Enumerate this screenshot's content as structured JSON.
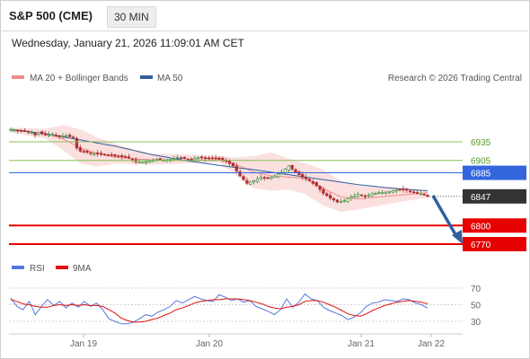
{
  "header": {
    "title": "S&P 500 (CME)",
    "interval": "30 MIN"
  },
  "datetime": "Wednesday, January 21, 2026 11:09:01 AM CET",
  "credit": "Research © 2026 Trading Central",
  "legend": {
    "bollinger": "MA 20 + Bollinger Bands",
    "ma50": "MA 50",
    "rsi": "RSI",
    "rsi_ma": "9MA"
  },
  "colors": {
    "bollinger": "#f08a8a",
    "ma50": "#2f5f9e",
    "rsi": "#5577dd",
    "rsi_ma": "#e01010",
    "resistance": "#88c057",
    "pivot": "#3366dd",
    "support": "#e60000",
    "last": "#333333",
    "candle_up": "#2e8b2e",
    "candle_down": "#b03030"
  },
  "chart_data": [
    {
      "type": "candlestick",
      "title": "S&P 500 (CME) 30 MIN",
      "x_labels": [
        "Jan 19",
        "Jan 20",
        "Jan 21",
        "Jan 22"
      ],
      "y_range": [
        6760,
        6960
      ],
      "levels": [
        {
          "label": "6935",
          "value": 6935,
          "kind": "resistance"
        },
        {
          "label": "6905",
          "value": 6905,
          "kind": "resistance"
        },
        {
          "label": "6885",
          "value": 6885,
          "kind": "pivot"
        },
        {
          "label": "6847",
          "value": 6847,
          "kind": "last"
        },
        {
          "label": "6800",
          "value": 6800,
          "kind": "support"
        },
        {
          "label": "6770",
          "value": 6770,
          "kind": "support"
        }
      ],
      "close_path": [
        [
          0,
          6955
        ],
        [
          2,
          6953
        ],
        [
          4,
          6952
        ],
        [
          6,
          6950
        ],
        [
          7,
          6946
        ],
        [
          8,
          6950
        ],
        [
          10,
          6946
        ],
        [
          12,
          6947
        ],
        [
          14,
          6944
        ],
        [
          16,
          6945
        ],
        [
          18,
          6942
        ],
        [
          19,
          6925
        ],
        [
          20,
          6920
        ],
        [
          22,
          6918
        ],
        [
          24,
          6916
        ],
        [
          26,
          6915
        ],
        [
          28,
          6914
        ],
        [
          30,
          6912
        ],
        [
          32,
          6911
        ],
        [
          34,
          6909
        ],
        [
          36,
          6903
        ],
        [
          38,
          6902
        ],
        [
          40,
          6904
        ],
        [
          42,
          6907
        ],
        [
          44,
          6905
        ],
        [
          46,
          6907
        ],
        [
          48,
          6910
        ],
        [
          50,
          6908
        ],
        [
          52,
          6906
        ],
        [
          54,
          6910
        ],
        [
          56,
          6908
        ],
        [
          58,
          6909
        ],
        [
          60,
          6907
        ],
        [
          62,
          6904
        ],
        [
          64,
          6896
        ],
        [
          66,
          6880
        ],
        [
          68,
          6868
        ],
        [
          70,
          6872
        ],
        [
          72,
          6878
        ],
        [
          74,
          6876
        ],
        [
          76,
          6880
        ],
        [
          78,
          6886
        ],
        [
          80,
          6896
        ],
        [
          82,
          6886
        ],
        [
          84,
          6878
        ],
        [
          86,
          6872
        ],
        [
          88,
          6864
        ],
        [
          90,
          6852
        ],
        [
          92,
          6844
        ],
        [
          94,
          6838
        ],
        [
          96,
          6840
        ],
        [
          98,
          6846
        ],
        [
          100,
          6850
        ],
        [
          102,
          6847
        ],
        [
          104,
          6851
        ],
        [
          106,
          6853
        ],
        [
          108,
          6854
        ],
        [
          110,
          6856
        ],
        [
          112,
          6858
        ],
        [
          114,
          6857
        ],
        [
          116,
          6854
        ],
        [
          118,
          6852
        ],
        [
          120,
          6847
        ]
      ],
      "ma50": [
        [
          0,
          6955
        ],
        [
          10,
          6948
        ],
        [
          20,
          6938
        ],
        [
          30,
          6928
        ],
        [
          40,
          6915
        ],
        [
          50,
          6905
        ],
        [
          60,
          6897
        ],
        [
          70,
          6890
        ],
        [
          80,
          6882
        ],
        [
          90,
          6874
        ],
        [
          100,
          6866
        ],
        [
          110,
          6860
        ],
        [
          120,
          6856
        ]
      ],
      "bollinger_mid": [
        [
          0,
          6954
        ],
        [
          10,
          6948
        ],
        [
          15,
          6940
        ],
        [
          20,
          6925
        ],
        [
          25,
          6916
        ],
        [
          30,
          6910
        ],
        [
          40,
          6906
        ],
        [
          50,
          6905
        ],
        [
          60,
          6906
        ],
        [
          65,
          6898
        ],
        [
          70,
          6886
        ],
        [
          75,
          6880
        ],
        [
          80,
          6878
        ],
        [
          85,
          6876
        ],
        [
          90,
          6860
        ],
        [
          95,
          6846
        ],
        [
          100,
          6843
        ],
        [
          110,
          6848
        ],
        [
          120,
          6853
        ]
      ],
      "bollinger_upper": [
        [
          0,
          6958
        ],
        [
          10,
          6956
        ],
        [
          15,
          6962
        ],
        [
          20,
          6955
        ],
        [
          25,
          6942
        ],
        [
          30,
          6932
        ],
        [
          40,
          6916
        ],
        [
          50,
          6915
        ],
        [
          60,
          6912
        ],
        [
          65,
          6910
        ],
        [
          70,
          6912
        ],
        [
          75,
          6918
        ],
        [
          80,
          6908
        ],
        [
          85,
          6900
        ],
        [
          90,
          6890
        ],
        [
          95,
          6872
        ],
        [
          100,
          6864
        ],
        [
          110,
          6862
        ],
        [
          120,
          6856
        ]
      ],
      "bollinger_lower": [
        [
          0,
          6950
        ],
        [
          10,
          6940
        ],
        [
          15,
          6922
        ],
        [
          20,
          6900
        ],
        [
          25,
          6895
        ],
        [
          30,
          6900
        ],
        [
          40,
          6898
        ],
        [
          50,
          6900
        ],
        [
          60,
          6902
        ],
        [
          65,
          6880
        ],
        [
          70,
          6860
        ],
        [
          75,
          6856
        ],
        [
          80,
          6858
        ],
        [
          85,
          6850
        ],
        [
          90,
          6832
        ],
        [
          95,
          6822
        ],
        [
          100,
          6826
        ],
        [
          110,
          6836
        ],
        [
          120,
          6845
        ]
      ]
    },
    {
      "type": "line",
      "title": "RSI",
      "y_ticks": [
        30,
        50,
        70
      ],
      "ylim": [
        20,
        80
      ],
      "series": [
        {
          "name": "RSI",
          "values": [
            58,
            48,
            44,
            54,
            38,
            48,
            56,
            49,
            54,
            46,
            52,
            47,
            54,
            48,
            52,
            44,
            33,
            30,
            27,
            27,
            29,
            33,
            38,
            36,
            41,
            44,
            48,
            55,
            52,
            56,
            60,
            57,
            55,
            54,
            62,
            59,
            55,
            57,
            53,
            55,
            48,
            45,
            42,
            38,
            44,
            57,
            47,
            53,
            63,
            57,
            55,
            47,
            43,
            40,
            37,
            32,
            35,
            40,
            48,
            52,
            53,
            56,
            55,
            54,
            57,
            56,
            52,
            50,
            46
          ]
        },
        {
          "name": "9MA",
          "values": [
            56,
            54,
            51,
            50,
            48,
            47,
            47,
            49,
            50,
            49,
            50,
            49,
            50,
            49,
            49,
            48,
            44,
            40,
            34,
            31,
            29,
            29,
            30,
            32,
            34,
            37,
            40,
            44,
            46,
            49,
            52,
            54,
            55,
            56,
            56,
            57,
            57,
            57,
            56,
            55,
            53,
            51,
            48,
            46,
            45,
            47,
            48,
            50,
            54,
            55,
            55,
            53,
            50,
            47,
            43,
            39,
            37,
            36,
            39,
            43,
            46,
            49,
            51,
            53,
            54,
            55,
            54,
            53,
            51
          ]
        }
      ]
    }
  ]
}
